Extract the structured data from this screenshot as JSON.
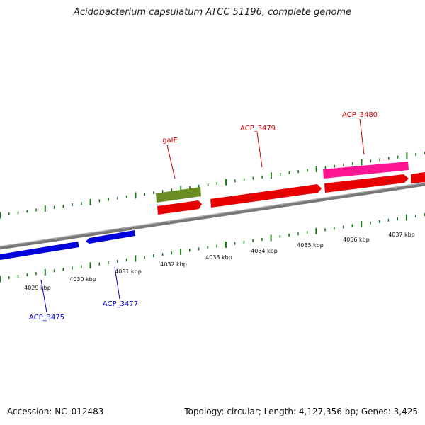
{
  "header": {
    "title": "Acidobacterium capsulatum ATCC 51196, complete genome"
  },
  "footer": {
    "accession": "Accession: NC_012483",
    "topology": "Topology: circular; Length: 4,127,356 bp; Genes: 3,425"
  },
  "colors": {
    "backbone": "#8a8a8a",
    "ticks": "#1a7a1a",
    "forward_gene": "#e60000",
    "reverse_gene": "#0000dd",
    "gale_gene": "#6b8e23",
    "acp3480_gene": "#ff1493",
    "forward_label": "#cc0000",
    "reverse_label": "#0000cc"
  },
  "scale_labels": [
    "4029 kbp",
    "4030 kbp",
    "4031 kbp",
    "4032 kbp",
    "4033 kbp",
    "4034 kbp",
    "4035 kbp",
    "4036 kbp",
    "4037 kbp"
  ],
  "gene_labels": {
    "galE": "galE",
    "acp3479": "ACP_3479",
    "acp3480": "ACP_3480",
    "acp3475": "ACP_3475",
    "acp3477": "ACP_3477"
  }
}
